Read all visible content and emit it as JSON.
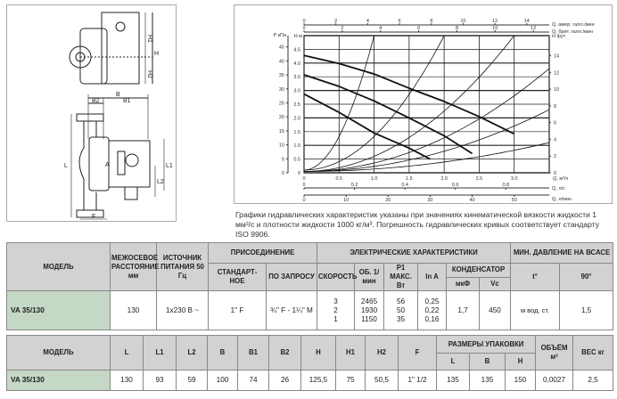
{
  "drawing": {
    "labels": {
      "h1": "H1",
      "h": "H",
      "h2": "H2",
      "b": "B",
      "b2": "B2",
      "b1": "B1",
      "l": "L",
      "l1": "L1",
      "l2": "L2",
      "f": "F",
      "a": "A"
    }
  },
  "note": "Графики гидравлических характеристик указаны при значениях кинематической вязкости жидкости 1 мм²/с и плотности жидкости 1000 кг/м³. Погрешность гидравлических кривых соответствует стандарту ISO 9906.",
  "chart_data": {
    "type": "line",
    "xlabel": "Q, м³/ч",
    "ylabel": "H м",
    "xlim": [
      0,
      3.5
    ],
    "ylim": [
      0,
      5
    ],
    "grid": true,
    "x_ticks": [
      "0",
      "0.5",
      "1.0",
      "1.5",
      "2.0",
      "2.5",
      "3.0"
    ],
    "y_ticks": [
      "0",
      "0.5",
      "1.0",
      "1.5",
      "2.0",
      "2.5",
      "3.0",
      "3.5",
      "4.0",
      "4.5"
    ],
    "left_axis": {
      "label": "P кПа",
      "ticks": [
        "0",
        "5",
        "10",
        "15",
        "20",
        "25",
        "30",
        "35",
        "40",
        "45"
      ]
    },
    "right_axis": {
      "label": "H фут",
      "ticks": [
        "0",
        "2",
        "4",
        "6",
        "8",
        "10",
        "12",
        "14"
      ]
    },
    "top_axes": [
      {
        "label": "Q, амер. галл./мин",
        "ticks": [
          "0",
          "2",
          "4",
          "6",
          "8",
          "10",
          "12",
          "14"
        ]
      },
      {
        "label": "Q, брит. галл./мин",
        "ticks": [
          "0",
          "2",
          "4",
          "6",
          "8",
          "10",
          "12"
        ]
      }
    ],
    "bottom_axes": [
      {
        "label": "Q, л/с",
        "ticks": [
          "0",
          "0.2",
          "0.4",
          "0.6",
          "0.8"
        ]
      },
      {
        "label": "Q, л/мин",
        "ticks": [
          "0",
          "10",
          "20",
          "30",
          "40",
          "50"
        ]
      }
    ],
    "pump_curves": [
      {
        "points": [
          [
            0,
            4.28
          ],
          [
            0.5,
            3.98
          ],
          [
            1.0,
            3.6
          ],
          [
            1.5,
            3.08
          ],
          [
            2.0,
            2.6
          ],
          [
            2.5,
            2.05
          ],
          [
            3.0,
            1.42
          ]
        ]
      },
      {
        "points": [
          [
            0,
            3.57
          ],
          [
            0.5,
            3.15
          ],
          [
            1.0,
            2.62
          ],
          [
            1.5,
            2.0
          ],
          [
            2.0,
            1.35
          ],
          [
            2.4,
            0.7
          ]
        ]
      },
      {
        "points": [
          [
            0,
            2.87
          ],
          [
            0.5,
            2.2
          ],
          [
            1.0,
            1.45
          ],
          [
            1.5,
            0.9
          ],
          [
            1.8,
            0.5
          ]
        ]
      }
    ],
    "system_curves": [
      {
        "h0": 0.1,
        "end": [
          1.0,
          5.0
        ]
      },
      {
        "h0": 0.1,
        "end": [
          2.0,
          5.0
        ]
      },
      {
        "h0": 0.05,
        "end": [
          3.0,
          5.0
        ]
      },
      {
        "h0": 0.05,
        "end": [
          3.5,
          3.8
        ]
      },
      {
        "h0": 0.05,
        "end": [
          3.5,
          2.3
        ]
      },
      {
        "h0": 0.05,
        "end": [
          3.5,
          1.1
        ]
      }
    ]
  },
  "table1": {
    "h_model": "МОДЕЛЬ",
    "h_axis": "МЕЖОСЕВОЕ РАССТОЯНИЕ мм",
    "h_power": "ИСТОЧНИК ПИТАНИЯ 50 Гц",
    "h_conn": "ПРИСОЕДИНЕНИЕ",
    "h_std": "СТАНДАРТ- НОЕ",
    "h_req": "ПО ЗАПРОСУ",
    "h_elec": "ЭЛЕКТРИЧЕСКИЕ ХАРАКТЕРИСТИКИ",
    "h_speed": "СКОРОСТЬ",
    "h_rpm": "ОБ. 1/мин",
    "h_p1": "P1 МАКС. Вт",
    "h_in": "In A",
    "h_cap": "КОНДЕНСАТОР",
    "h_uf": "мкФ",
    "h_vc": "Vc",
    "h_minp": "МИН. ДАВЛЕНИЕ НА ВСАСЕ",
    "h_t": "t°",
    "h_90": "90°",
    "row": {
      "model": "VA 35/130",
      "axis": "130",
      "power": "1x230 В ~",
      "std": "1\" F",
      "req": "¾\" F - 1¼\" M",
      "speed": "3\n2\n1",
      "rpm": "2465\n1930\n1150",
      "p1": "56\n50\n35",
      "in": "0,25\n0,22\n0,16",
      "uf": "1,7",
      "vc": "450",
      "t": "м вод. ст.",
      "v90": "1,5"
    }
  },
  "table2": {
    "headers": [
      "МОДЕЛЬ",
      "L",
      "L1",
      "L2",
      "B",
      "B1",
      "B2",
      "H",
      "H1",
      "H2",
      "F"
    ],
    "h_pack": "РАЗМЕРЫ УПАКОВКИ",
    "pack": [
      "L",
      "B",
      "H"
    ],
    "h_vol": "ОБЪЁМ м³",
    "h_weight": "ВЕС кг",
    "row": [
      "VA 35/130",
      "130",
      "93",
      "59",
      "100",
      "74",
      "26",
      "125,5",
      "75",
      "50,5",
      "1\" 1/2",
      "135",
      "135",
      "150",
      "0,0027",
      "2,5"
    ]
  }
}
